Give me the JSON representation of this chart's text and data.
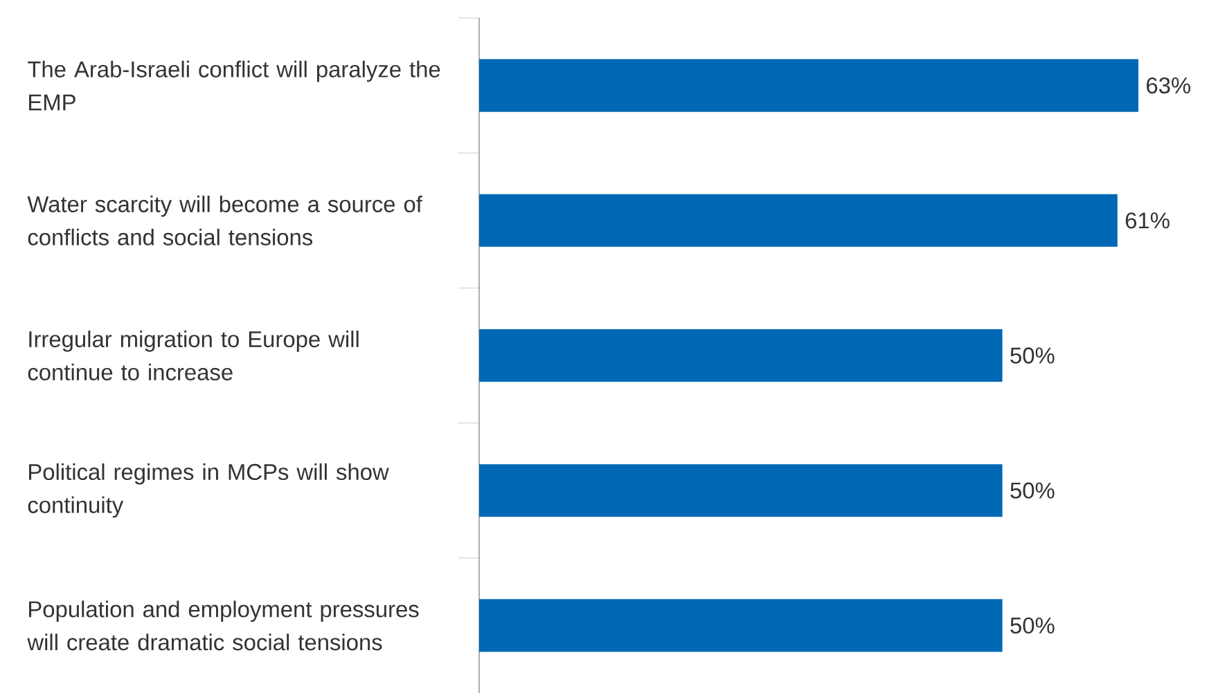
{
  "chart_data": {
    "type": "bar",
    "orientation": "horizontal",
    "categories": [
      "The Arab-Israeli conflict will paralyze the EMP",
      "Water scarcity will become a source of conflicts and social tensions",
      "Irregular migration to Europe will continue to increase",
      "Political regimes in MCPs will show continuity",
      "Population and employment pressures will create dramatic social tensions"
    ],
    "values": [
      63,
      61,
      50,
      50,
      50
    ],
    "value_labels": [
      "63%",
      "61%",
      "50%",
      "50%",
      "50%"
    ],
    "color": "#0068b4"
  }
}
